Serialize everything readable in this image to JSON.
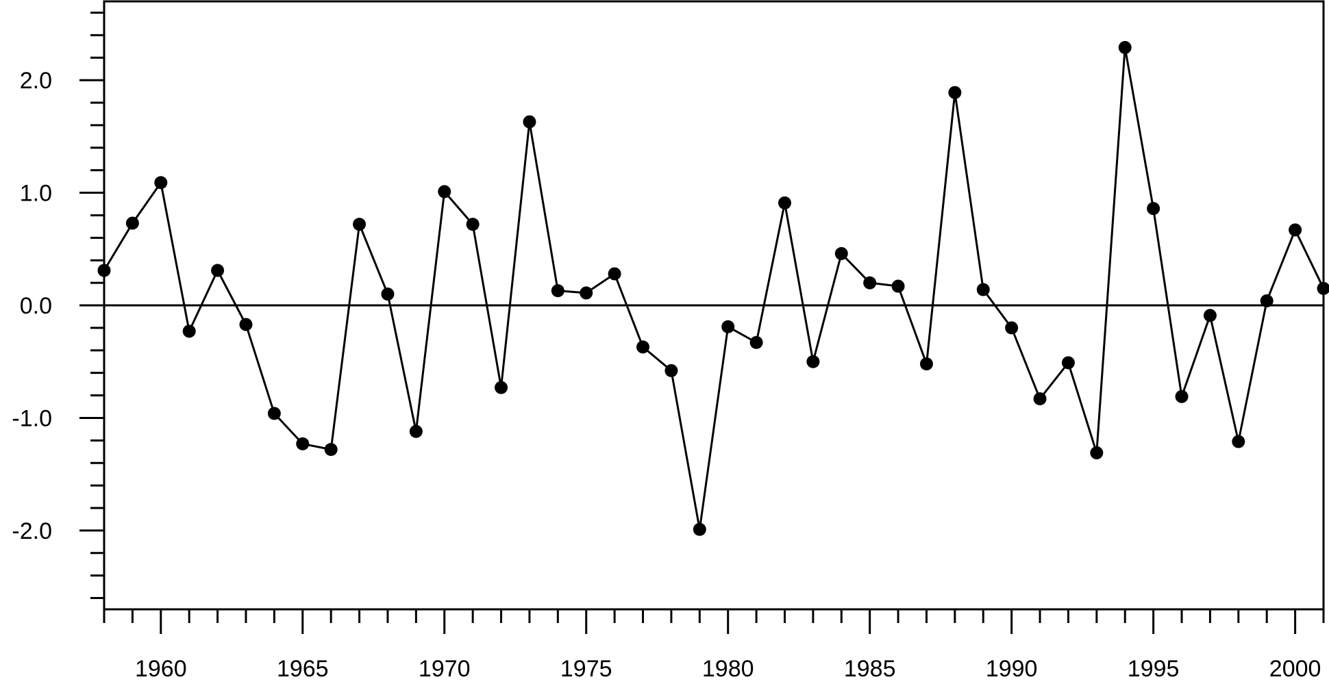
{
  "chart_data": {
    "type": "line",
    "title": "",
    "xlabel": "",
    "ylabel": "",
    "x": [
      1958,
      1959,
      1960,
      1961,
      1962,
      1963,
      1964,
      1965,
      1966,
      1967,
      1968,
      1969,
      1970,
      1971,
      1972,
      1973,
      1974,
      1975,
      1976,
      1977,
      1978,
      1979,
      1980,
      1981,
      1982,
      1983,
      1984,
      1985,
      1986,
      1987,
      1988,
      1989,
      1990,
      1991,
      1992,
      1993,
      1994,
      1995,
      1996,
      1997,
      1998,
      1999,
      2000,
      2001
    ],
    "series": [
      {
        "name": "",
        "values": [
          0.31,
          0.73,
          1.09,
          -0.23,
          0.31,
          -0.17,
          -0.96,
          -1.23,
          -1.28,
          0.72,
          0.1,
          -1.12,
          1.01,
          0.72,
          -0.73,
          1.63,
          0.13,
          0.11,
          0.28,
          -0.37,
          -0.58,
          -1.99,
          -0.19,
          -0.33,
          0.91,
          -0.5,
          0.46,
          0.2,
          0.17,
          -0.52,
          1.89,
          0.14,
          -0.2,
          -0.83,
          -0.51,
          -1.31,
          2.29,
          0.86,
          -0.81,
          -0.09,
          -1.21,
          0.04,
          0.67,
          0.15
        ]
      }
    ],
    "xlim": [
      1958,
      2001
    ],
    "ylim": [
      -2.7,
      2.7
    ],
    "x_ticks_major": [
      1960,
      1965,
      1970,
      1975,
      1980,
      1985,
      1990,
      1995,
      2000
    ],
    "x_tick_labels": [
      "1960",
      "1965",
      "1970",
      "1975",
      "1980",
      "1985",
      "1990",
      "1995",
      "2000"
    ],
    "y_ticks_major": [
      -2.0,
      -1.0,
      0.0,
      1.0,
      2.0
    ],
    "y_tick_labels": [
      "-2.0",
      "-1.0",
      "0.0",
      "1.0",
      "2.0"
    ],
    "zero_line": true,
    "grid": false,
    "legend": "none",
    "line_color": "#000000",
    "marker": "filled-circle"
  }
}
